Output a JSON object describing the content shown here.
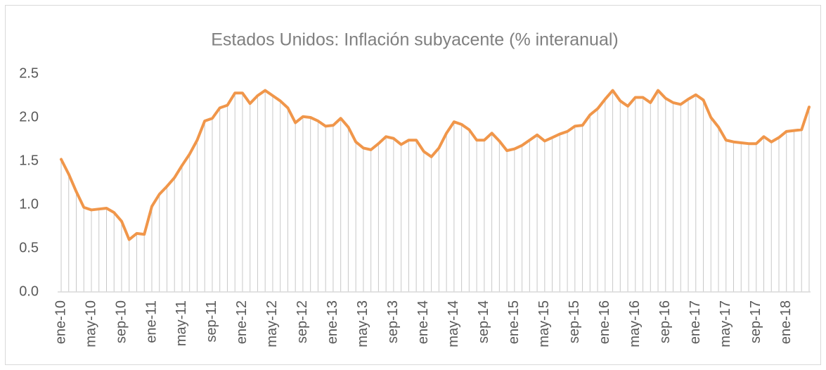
{
  "chart_data": {
    "type": "line",
    "title": "Estados Unidos: Inflación subyacente  (% interanual)",
    "categories": [
      "ene-10",
      null,
      null,
      null,
      "may-10",
      null,
      null,
      null,
      "sep-10",
      null,
      null,
      null,
      "ene-11",
      null,
      null,
      null,
      "may-11",
      null,
      null,
      null,
      "sep-11",
      null,
      null,
      null,
      "ene-12",
      null,
      null,
      null,
      "may-12",
      null,
      null,
      null,
      "sep-12",
      null,
      null,
      null,
      "ene-13",
      null,
      null,
      null,
      "may-13",
      null,
      null,
      null,
      "sep-13",
      null,
      null,
      null,
      "ene-14",
      null,
      null,
      null,
      "may-14",
      null,
      null,
      null,
      "sep-14",
      null,
      null,
      null,
      "ene-15",
      null,
      null,
      null,
      "may-15",
      null,
      null,
      null,
      "sep-15",
      null,
      null,
      null,
      "ene-16",
      null,
      null,
      null,
      "may-16",
      null,
      null,
      null,
      "sep-16",
      null,
      null,
      null,
      "ene-17",
      null,
      null,
      null,
      "may-17",
      null,
      null,
      null,
      "sep-17",
      null,
      null,
      null,
      "ene-18",
      null,
      null,
      null
    ],
    "values": [
      1.52,
      1.35,
      1.15,
      0.97,
      0.94,
      0.95,
      0.96,
      0.91,
      0.81,
      0.6,
      0.67,
      0.66,
      0.98,
      1.12,
      1.21,
      1.31,
      1.45,
      1.58,
      1.74,
      1.96,
      1.99,
      2.11,
      2.14,
      2.28,
      2.28,
      2.16,
      2.25,
      2.31,
      2.25,
      2.19,
      2.11,
      1.94,
      2.01,
      2.0,
      1.96,
      1.9,
      1.91,
      1.99,
      1.89,
      1.72,
      1.65,
      1.63,
      1.7,
      1.78,
      1.76,
      1.69,
      1.74,
      1.74,
      1.61,
      1.55,
      1.65,
      1.82,
      1.95,
      1.92,
      1.86,
      1.74,
      1.74,
      1.82,
      1.73,
      1.62,
      1.64,
      1.68,
      1.74,
      1.8,
      1.73,
      1.77,
      1.81,
      1.84,
      1.9,
      1.91,
      2.03,
      2.1,
      2.21,
      2.31,
      2.19,
      2.13,
      2.23,
      2.23,
      2.17,
      2.31,
      2.22,
      2.17,
      2.15,
      2.21,
      2.26,
      2.2,
      2.0,
      1.89,
      1.74,
      1.72,
      1.71,
      1.7,
      1.7,
      1.78,
      1.72,
      1.77,
      1.84,
      1.85,
      1.86,
      2.12
    ],
    "color": "#f0964a",
    "ylim": [
      0,
      2.5
    ],
    "yticks": [
      {
        "value": 0,
        "label": "0.0"
      },
      0.5,
      {
        "value": 1,
        "label": "1.0"
      },
      1.5,
      {
        "value": 2,
        "label": "2.0"
      },
      2.5
    ]
  }
}
